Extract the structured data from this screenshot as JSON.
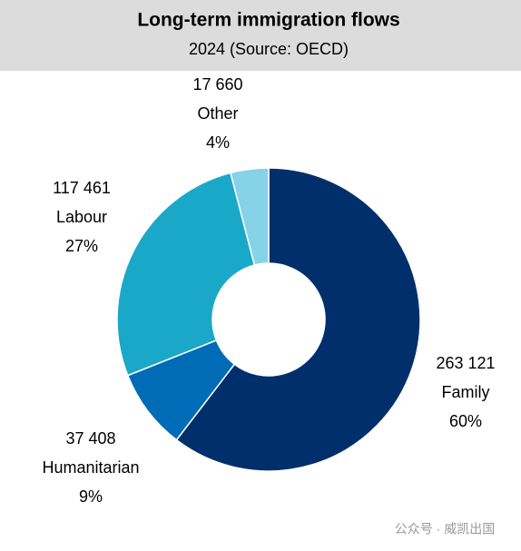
{
  "chart_data": {
    "type": "donut",
    "title": "Long-term immigration flows",
    "subtitle": "2024 (Source: OECD)",
    "categories": [
      "Family",
      "Humanitarian",
      "Labour",
      "Other"
    ],
    "values": [
      263121,
      37408,
      117461,
      17660
    ],
    "value_labels": [
      "263 121",
      "37 408",
      "117 461",
      "17 660"
    ],
    "percentage_labels": [
      "60%",
      "9%",
      "27%",
      "4%"
    ],
    "colors": [
      "#002f6c",
      "#006bb6",
      "#1aa8c9",
      "#86d3e8"
    ]
  },
  "watermark": "公众号 · 威凯出国"
}
